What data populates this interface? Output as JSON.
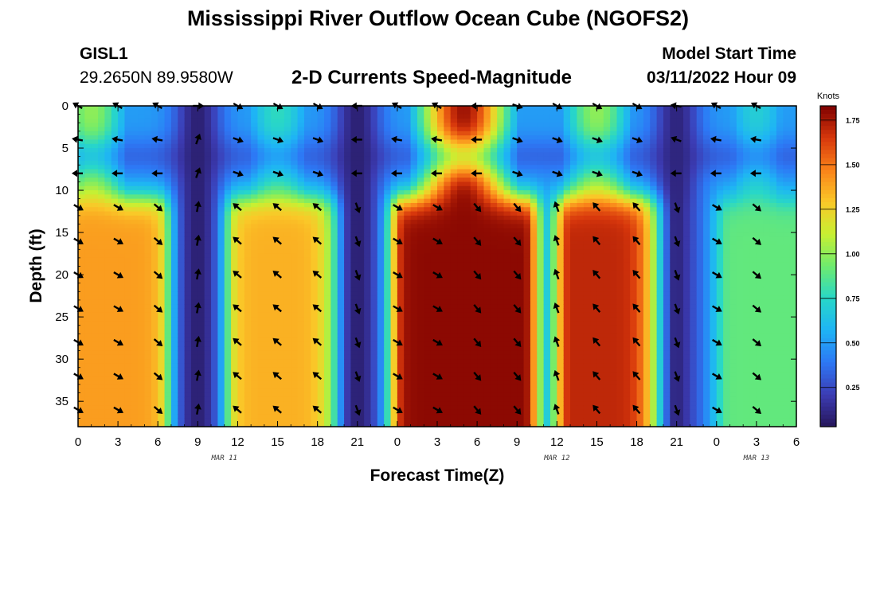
{
  "header": {
    "title": "Mississippi River Outflow Ocean Cube (NGOFS2)",
    "station": "GISL1",
    "coords": "29.2650N  89.9580W",
    "subtitle": "2-D Currents Speed-Magnitude",
    "model_start_label": "Model Start Time",
    "model_start_value": "03/11/2022 Hour 09"
  },
  "footer": {
    "title": "Mississippi River Outflow Ocean Cube (NGOFS2)"
  },
  "chart_data": {
    "type": "heatmap",
    "title": "2-D Currents Speed-Magnitude",
    "xlabel": "Forecast Time(Z)",
    "ylabel": "Depth (ft)",
    "x_hours_range": [
      0,
      54
    ],
    "ylim": [
      0,
      38
    ],
    "x_ticks": [
      {
        "hour": 0,
        "label": "0"
      },
      {
        "hour": 3,
        "label": "3"
      },
      {
        "hour": 6,
        "label": "6"
      },
      {
        "hour": 9,
        "label": "9"
      },
      {
        "hour": 12,
        "label": "12"
      },
      {
        "hour": 15,
        "label": "15"
      },
      {
        "hour": 18,
        "label": "18"
      },
      {
        "hour": 21,
        "label": "21"
      },
      {
        "hour": 24,
        "label": "0"
      },
      {
        "hour": 27,
        "label": "3"
      },
      {
        "hour": 30,
        "label": "6"
      },
      {
        "hour": 33,
        "label": "9"
      },
      {
        "hour": 36,
        "label": "12"
      },
      {
        "hour": 39,
        "label": "15"
      },
      {
        "hour": 42,
        "label": "18"
      },
      {
        "hour": 45,
        "label": "21"
      },
      {
        "hour": 48,
        "label": "0"
      },
      {
        "hour": 51,
        "label": "3"
      },
      {
        "hour": 54,
        "label": "6"
      }
    ],
    "date_labels": [
      {
        "hour": 11,
        "label": "MAR 11"
      },
      {
        "hour": 36,
        "label": "MAR 12"
      },
      {
        "hour": 51,
        "label": "MAR 13"
      }
    ],
    "y_ticks": [
      0,
      5,
      10,
      15,
      20,
      25,
      30,
      35
    ],
    "colorbar": {
      "unit": "Knots",
      "min": 0.03,
      "max": 1.83,
      "ticks": [
        0.25,
        0.5,
        0.75,
        1.0,
        1.25,
        1.5,
        1.75
      ],
      "tick_labels": [
        "0.25",
        "0.50",
        "0.75",
        "1.00",
        "1.25",
        "1.50",
        "1.75"
      ]
    },
    "speed_model": {
      "layer_split_ft": 11,
      "surface_peak_hour": 29,
      "surface_peak_value": 1.72,
      "surface_secondary": [
        {
          "hour": 1,
          "value": 0.95
        },
        {
          "hour": 15,
          "value": 0.72
        },
        {
          "hour": 39,
          "value": 0.95
        },
        {
          "hour": 51,
          "value": 0.65
        }
      ],
      "deep_columns": [
        {
          "center_hour": 2.5,
          "width": 7,
          "value": 1.35
        },
        {
          "center_hour": 15.5,
          "width": 7,
          "value": 1.3
        },
        {
          "center_hour": 29,
          "width": 9,
          "value": 1.75
        },
        {
          "center_hour": 40.5,
          "width": 7,
          "value": 1.65
        },
        {
          "center_hour": 51.5,
          "width": 5,
          "value": 0.85
        }
      ],
      "minima": [
        {
          "hour": 9,
          "value": 0.08
        },
        {
          "hour": 21,
          "value": 0.08
        },
        {
          "hour": 45,
          "value": 0.1
        }
      ]
    },
    "arrow_columns": [
      {
        "hour": 0,
        "dirs": [
          300,
          280,
          270,
          120,
          120,
          120,
          120,
          120,
          120,
          120
        ]
      },
      {
        "hour": 3,
        "dirs": [
          300,
          280,
          270,
          120,
          120,
          120,
          120,
          120,
          120,
          120
        ]
      },
      {
        "hour": 6,
        "dirs": [
          300,
          280,
          270,
          130,
          130,
          130,
          130,
          130,
          130,
          130
        ]
      },
      {
        "hour": 9,
        "dirs": [
          90,
          20,
          20,
          10,
          10,
          10,
          10,
          10,
          10,
          10
        ]
      },
      {
        "hour": 12,
        "dirs": [
          120,
          110,
          110,
          310,
          310,
          310,
          310,
          310,
          310,
          310
        ]
      },
      {
        "hour": 15,
        "dirs": [
          120,
          110,
          110,
          310,
          310,
          310,
          310,
          310,
          310,
          310
        ]
      },
      {
        "hour": 18,
        "dirs": [
          120,
          110,
          110,
          310,
          310,
          310,
          310,
          310,
          310,
          310
        ]
      },
      {
        "hour": 21,
        "dirs": [
          270,
          270,
          270,
          160,
          160,
          160,
          160,
          160,
          160,
          160
        ]
      },
      {
        "hour": 24,
        "dirs": [
          300,
          280,
          270,
          120,
          120,
          120,
          120,
          120,
          120,
          120
        ]
      },
      {
        "hour": 27,
        "dirs": [
          300,
          280,
          270,
          120,
          120,
          120,
          120,
          120,
          120,
          120
        ]
      },
      {
        "hour": 30,
        "dirs": [
          270,
          270,
          270,
          140,
          140,
          140,
          140,
          140,
          140,
          140
        ]
      },
      {
        "hour": 33,
        "dirs": [
          110,
          110,
          110,
          140,
          140,
          140,
          140,
          140,
          140,
          140
        ]
      },
      {
        "hour": 36,
        "dirs": [
          120,
          110,
          110,
          340,
          340,
          340,
          340,
          340,
          340,
          340
        ]
      },
      {
        "hour": 39,
        "dirs": [
          120,
          110,
          110,
          320,
          320,
          320,
          320,
          320,
          320,
          320
        ]
      },
      {
        "hour": 42,
        "dirs": [
          120,
          110,
          110,
          320,
          320,
          320,
          320,
          320,
          320,
          320
        ]
      },
      {
        "hour": 45,
        "dirs": [
          280,
          290,
          270,
          160,
          160,
          160,
          160,
          160,
          160,
          160
        ]
      },
      {
        "hour": 48,
        "dirs": [
          300,
          280,
          270,
          120,
          120,
          120,
          120,
          120,
          120,
          120
        ]
      },
      {
        "hour": 51,
        "dirs": [
          300,
          280,
          270,
          130,
          130,
          130,
          130,
          130,
          130,
          130
        ]
      }
    ],
    "arrow_depths_ft": [
      0,
      4,
      8,
      12,
      16,
      20,
      24,
      28,
      32,
      36
    ]
  }
}
